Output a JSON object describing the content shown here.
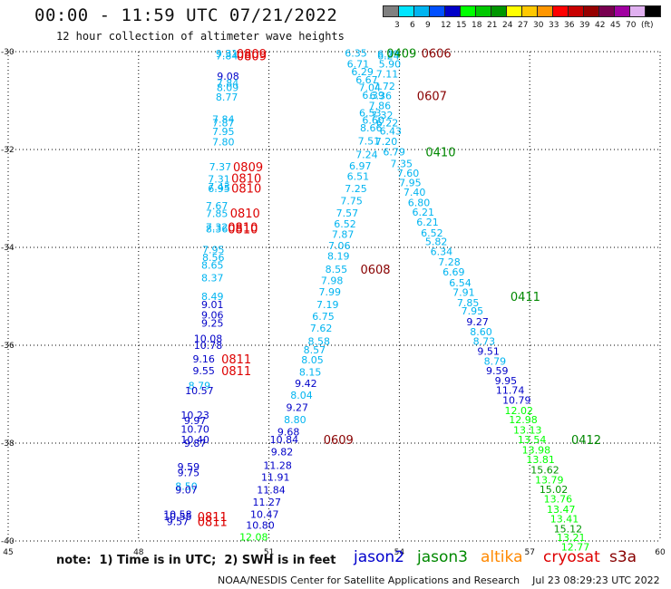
{
  "header": {
    "title": "00:00 - 11:59 UTC 07/21/2022",
    "subtitle": "12 hour collection of altimeter wave heights"
  },
  "colorbar": {
    "colors": [
      "#808080",
      "#00e5ff",
      "#00b4f0",
      "#0050ff",
      "#0000c8",
      "#00ff00",
      "#00c800",
      "#009600",
      "#ffff00",
      "#ffc800",
      "#ff9600",
      "#ff0000",
      "#c80000",
      "#960000",
      "#780050",
      "#a000a0",
      "#e0b0f0",
      "#000000"
    ],
    "labels": [
      "3",
      "6",
      "9",
      "12",
      "15",
      "18",
      "21",
      "24",
      "27",
      "30",
      "33",
      "36",
      "39",
      "42",
      "45",
      "70",
      "(ft)"
    ]
  },
  "legend": {
    "note": "note:  1) Time is in UTC;  2) SWH is in feet",
    "missions": [
      {
        "name": "jason2",
        "color": "#0000cc"
      },
      {
        "name": "jason3",
        "color": "#008800"
      },
      {
        "name": "altika",
        "color": "#ff8800"
      },
      {
        "name": "cryosat",
        "color": "#dd0000"
      },
      {
        "name": "s3a",
        "color": "#880000"
      }
    ]
  },
  "credit": "NOAA/NESDIS Center for Satellite Applications and Research    Jul 23 08:29:23 UTC 2022",
  "chart_data": {
    "type": "scatter",
    "xlim": [
      45,
      60
    ],
    "ylim": [
      -40,
      -30
    ],
    "x_ticks": [
      "45",
      "48",
      "51",
      "54",
      "57",
      "60"
    ],
    "y_ticks": [
      "-30",
      "-32",
      "-34",
      "-36",
      "-38",
      "-40"
    ],
    "grid": true,
    "points": [
      {
        "x": 50.03,
        "y": -30.04,
        "v": "9.31",
        "c": "#00b4f0"
      },
      {
        "x": 50.03,
        "y": -30.08,
        "v": "7.84",
        "c": "#00b4f0"
      },
      {
        "x": 50.06,
        "y": -30.5,
        "v": "9.08",
        "c": "#0000c8"
      },
      {
        "x": 50.05,
        "y": -30.64,
        "v": "7.84",
        "c": "#00b4f0"
      },
      {
        "x": 50.05,
        "y": -30.73,
        "v": "8.09",
        "c": "#00b4f0"
      },
      {
        "x": 50.03,
        "y": -30.93,
        "v": "8.77",
        "c": "#00b4f0"
      },
      {
        "x": 49.95,
        "y": -31.38,
        "v": "7.84",
        "c": "#00b4f0"
      },
      {
        "x": 49.95,
        "y": -31.45,
        "v": "7.87",
        "c": "#00b4f0"
      },
      {
        "x": 49.95,
        "y": -31.63,
        "v": "7.95",
        "c": "#00b4f0"
      },
      {
        "x": 49.95,
        "y": -31.84,
        "v": "7.80",
        "c": "#00b4f0"
      },
      {
        "x": 49.88,
        "y": -32.35,
        "v": "7.37",
        "c": "#00b4f0"
      },
      {
        "x": 49.85,
        "y": -32.6,
        "v": "7.31",
        "c": "#00b4f0"
      },
      {
        "x": 49.85,
        "y": -32.76,
        "v": "7.43",
        "c": "#00b4f0"
      },
      {
        "x": 49.85,
        "y": -32.8,
        "v": "6.95",
        "c": "#00b4f0"
      },
      {
        "x": 49.8,
        "y": -33.15,
        "v": "7.67",
        "c": "#00b4f0"
      },
      {
        "x": 49.8,
        "y": -33.31,
        "v": "7.85",
        "c": "#00b4f0"
      },
      {
        "x": 49.8,
        "y": -33.58,
        "v": "7.32",
        "c": "#00b4f0"
      },
      {
        "x": 49.8,
        "y": -33.62,
        "v": "8.36",
        "c": "#00b4f0"
      },
      {
        "x": 49.72,
        "y": -34.05,
        "v": "7.95",
        "c": "#00b4f0"
      },
      {
        "x": 49.72,
        "y": -34.2,
        "v": "8.56",
        "c": "#00b4f0"
      },
      {
        "x": 49.7,
        "y": -34.36,
        "v": "8.65",
        "c": "#00b4f0"
      },
      {
        "x": 49.7,
        "y": -34.62,
        "v": "8.37",
        "c": "#00b4f0"
      },
      {
        "x": 49.7,
        "y": -35.0,
        "v": "8.49",
        "c": "#00b4f0"
      },
      {
        "x": 49.7,
        "y": -35.17,
        "v": "9.01",
        "c": "#0000c8"
      },
      {
        "x": 49.7,
        "y": -35.38,
        "v": "9.06",
        "c": "#0000c8"
      },
      {
        "x": 49.7,
        "y": -35.55,
        "v": "9.25",
        "c": "#0000c8"
      },
      {
        "x": 49.6,
        "y": -35.86,
        "v": "10.08",
        "c": "#0000c8"
      },
      {
        "x": 49.6,
        "y": -36.0,
        "v": "10.78",
        "c": "#0000c8"
      },
      {
        "x": 49.5,
        "y": -36.28,
        "v": "9.16",
        "c": "#0000c8"
      },
      {
        "x": 49.5,
        "y": -36.52,
        "v": "9.55",
        "c": "#0000c8"
      },
      {
        "x": 49.4,
        "y": -36.82,
        "v": "8.79",
        "c": "#00b4f0"
      },
      {
        "x": 49.4,
        "y": -36.93,
        "v": "10.57",
        "c": "#0000c8"
      },
      {
        "x": 49.3,
        "y": -37.43,
        "v": "10.23",
        "c": "#0000c8"
      },
      {
        "x": 49.3,
        "y": -37.54,
        "v": "9.97",
        "c": "#0000c8"
      },
      {
        "x": 49.3,
        "y": -37.71,
        "v": "10.70",
        "c": "#0000c8"
      },
      {
        "x": 49.3,
        "y": -37.93,
        "v": "10.40",
        "c": "#0000c8"
      },
      {
        "x": 49.3,
        "y": -38.0,
        "v": "9.87",
        "c": "#0000c8"
      },
      {
        "x": 49.15,
        "y": -38.48,
        "v": "9.59",
        "c": "#0000c8"
      },
      {
        "x": 49.15,
        "y": -38.6,
        "v": "9.75",
        "c": "#0000c8"
      },
      {
        "x": 49.1,
        "y": -38.88,
        "v": "8.50",
        "c": "#00b4f0"
      },
      {
        "x": 49.1,
        "y": -38.95,
        "v": "9.07",
        "c": "#0000c8"
      },
      {
        "x": 48.9,
        "y": -39.45,
        "v": "10.58",
        "c": "#0000c8"
      },
      {
        "x": 48.9,
        "y": -39.5,
        "v": "10.55",
        "c": "#0000c8"
      },
      {
        "x": 48.9,
        "y": -39.6,
        "v": "9.57",
        "c": "#0000c8"
      },
      {
        "x": 53.0,
        "y": -30.03,
        "v": "6.35",
        "c": "#00b4f0"
      },
      {
        "x": 53.05,
        "y": -30.25,
        "v": "6.71",
        "c": "#00b4f0"
      },
      {
        "x": 53.15,
        "y": -30.41,
        "v": "6.29",
        "c": "#00b4f0"
      },
      {
        "x": 53.25,
        "y": -30.57,
        "v": "6.67",
        "c": "#00b4f0"
      },
      {
        "x": 53.32,
        "y": -30.73,
        "v": "7.04",
        "c": "#00b4f0"
      },
      {
        "x": 53.4,
        "y": -30.89,
        "v": "6.39",
        "c": "#00b4f0"
      },
      {
        "x": 53.33,
        "y": -31.25,
        "v": "6.53",
        "c": "#00b4f0"
      },
      {
        "x": 53.4,
        "y": -31.4,
        "v": "6.60",
        "c": "#00b4f0"
      },
      {
        "x": 53.35,
        "y": -31.56,
        "v": "8.66",
        "c": "#00b4f0"
      },
      {
        "x": 53.3,
        "y": -31.82,
        "v": "7.51",
        "c": "#00b4f0"
      },
      {
        "x": 53.25,
        "y": -32.1,
        "v": "7.24",
        "c": "#00b4f0"
      },
      {
        "x": 53.1,
        "y": -32.33,
        "v": "6.97",
        "c": "#00b4f0"
      },
      {
        "x": 53.05,
        "y": -32.55,
        "v": "6.51",
        "c": "#00b4f0"
      },
      {
        "x": 53.0,
        "y": -32.8,
        "v": "7.25",
        "c": "#00b4f0"
      },
      {
        "x": 52.9,
        "y": -33.05,
        "v": "7.75",
        "c": "#00b4f0"
      },
      {
        "x": 52.8,
        "y": -33.3,
        "v": "7.57",
        "c": "#00b4f0"
      },
      {
        "x": 52.75,
        "y": -33.52,
        "v": "6.52",
        "c": "#00b4f0"
      },
      {
        "x": 52.7,
        "y": -33.73,
        "v": "7.87",
        "c": "#00b4f0"
      },
      {
        "x": 52.62,
        "y": -33.96,
        "v": "7.06",
        "c": "#00b4f0"
      },
      {
        "x": 52.6,
        "y": -34.18,
        "v": "8.19",
        "c": "#00b4f0"
      },
      {
        "x": 52.55,
        "y": -34.44,
        "v": "8.55",
        "c": "#00b4f0"
      },
      {
        "x": 52.45,
        "y": -34.68,
        "v": "7.98",
        "c": "#00b4f0"
      },
      {
        "x": 52.4,
        "y": -34.91,
        "v": "7.99",
        "c": "#00b4f0"
      },
      {
        "x": 52.35,
        "y": -35.17,
        "v": "7.19",
        "c": "#00b4f0"
      },
      {
        "x": 52.25,
        "y": -35.41,
        "v": "6.75",
        "c": "#00b4f0"
      },
      {
        "x": 52.2,
        "y": -35.65,
        "v": "7.62",
        "c": "#00b4f0"
      },
      {
        "x": 52.15,
        "y": -35.92,
        "v": "8.58",
        "c": "#00b4f0"
      },
      {
        "x": 52.05,
        "y": -36.09,
        "v": "8.57",
        "c": "#00b4f0"
      },
      {
        "x": 52.0,
        "y": -36.3,
        "v": "8.05",
        "c": "#00b4f0"
      },
      {
        "x": 51.95,
        "y": -36.55,
        "v": "8.15",
        "c": "#00b4f0"
      },
      {
        "x": 51.85,
        "y": -36.78,
        "v": "9.42",
        "c": "#0000c8"
      },
      {
        "x": 51.75,
        "y": -37.02,
        "v": "8.04",
        "c": "#00b4f0"
      },
      {
        "x": 51.65,
        "y": -37.27,
        "v": "9.27",
        "c": "#0000c8"
      },
      {
        "x": 51.6,
        "y": -37.52,
        "v": "8.80",
        "c": "#00b4f0"
      },
      {
        "x": 51.45,
        "y": -37.77,
        "v": "9.68",
        "c": "#0000c8"
      },
      {
        "x": 51.35,
        "y": -37.93,
        "v": "10.84",
        "c": "#0000c8"
      },
      {
        "x": 51.3,
        "y": -38.18,
        "v": "9.82",
        "c": "#0000c8"
      },
      {
        "x": 51.2,
        "y": -38.45,
        "v": "11.28",
        "c": "#0000c8"
      },
      {
        "x": 51.15,
        "y": -38.69,
        "v": "11.91",
        "c": "#0000c8"
      },
      {
        "x": 51.05,
        "y": -38.95,
        "v": "11.84",
        "c": "#0000c8"
      },
      {
        "x": 50.95,
        "y": -39.2,
        "v": "11.27",
        "c": "#0000c8"
      },
      {
        "x": 50.9,
        "y": -39.45,
        "v": "10.47",
        "c": "#0000c8"
      },
      {
        "x": 50.8,
        "y": -39.68,
        "v": "10.80",
        "c": "#0000c8"
      },
      {
        "x": 50.65,
        "y": -39.92,
        "v": "12.08",
        "c": "#00ff00"
      },
      {
        "x": 53.75,
        "y": -30.05,
        "v": "6.29",
        "c": "#00b4f0"
      },
      {
        "x": 53.75,
        "y": -30.08,
        "v": "6.24",
        "c": "#00b4f0"
      },
      {
        "x": 53.78,
        "y": -30.25,
        "v": "5.90",
        "c": "#00b4f0"
      },
      {
        "x": 53.72,
        "y": -30.45,
        "v": "7.11",
        "c": "#00b4f0"
      },
      {
        "x": 53.65,
        "y": -30.7,
        "v": "7.72",
        "c": "#00b4f0"
      },
      {
        "x": 53.57,
        "y": -30.9,
        "v": "6.36",
        "c": "#00b4f0"
      },
      {
        "x": 53.55,
        "y": -31.1,
        "v": "7.86",
        "c": "#00b4f0"
      },
      {
        "x": 53.6,
        "y": -31.3,
        "v": "7.32",
        "c": "#00b4f0"
      },
      {
        "x": 53.72,
        "y": -31.45,
        "v": "6.22",
        "c": "#00b4f0"
      },
      {
        "x": 53.8,
        "y": -31.62,
        "v": "6.43",
        "c": "#00b4f0"
      },
      {
        "x": 53.7,
        "y": -31.83,
        "v": "7.20",
        "c": "#00b4f0"
      },
      {
        "x": 53.88,
        "y": -32.05,
        "v": "6.79",
        "c": "#00b4f0"
      },
      {
        "x": 54.05,
        "y": -32.29,
        "v": "7.35",
        "c": "#00b4f0"
      },
      {
        "x": 54.2,
        "y": -32.48,
        "v": "7.60",
        "c": "#00b4f0"
      },
      {
        "x": 54.25,
        "y": -32.68,
        "v": "7.95",
        "c": "#00b4f0"
      },
      {
        "x": 54.35,
        "y": -32.87,
        "v": "7.40",
        "c": "#00b4f0"
      },
      {
        "x": 54.45,
        "y": -33.08,
        "v": "6.80",
        "c": "#00b4f0"
      },
      {
        "x": 54.55,
        "y": -33.28,
        "v": "6.21",
        "c": "#00b4f0"
      },
      {
        "x": 54.65,
        "y": -33.48,
        "v": "6.21",
        "c": "#00b4f0"
      },
      {
        "x": 54.75,
        "y": -33.7,
        "v": "6.52",
        "c": "#00b4f0"
      },
      {
        "x": 54.85,
        "y": -33.88,
        "v": "5.82",
        "c": "#00b4f0"
      },
      {
        "x": 54.97,
        "y": -34.08,
        "v": "6.34",
        "c": "#00b4f0"
      },
      {
        "x": 55.15,
        "y": -34.3,
        "v": "7.28",
        "c": "#00b4f0"
      },
      {
        "x": 55.25,
        "y": -34.5,
        "v": "6.69",
        "c": "#00b4f0"
      },
      {
        "x": 55.4,
        "y": -34.72,
        "v": "6.54",
        "c": "#00b4f0"
      },
      {
        "x": 55.48,
        "y": -34.92,
        "v": "7.91",
        "c": "#00b4f0"
      },
      {
        "x": 55.58,
        "y": -35.13,
        "v": "7.85",
        "c": "#00b4f0"
      },
      {
        "x": 55.68,
        "y": -35.3,
        "v": "7.95",
        "c": "#00b4f0"
      },
      {
        "x": 55.8,
        "y": -35.52,
        "v": "9.27",
        "c": "#0000c8"
      },
      {
        "x": 55.88,
        "y": -35.72,
        "v": "8.60",
        "c": "#00b4f0"
      },
      {
        "x": 55.95,
        "y": -35.92,
        "v": "8.73",
        "c": "#00b4f0"
      },
      {
        "x": 56.05,
        "y": -36.12,
        "v": "9.51",
        "c": "#0000c8"
      },
      {
        "x": 56.2,
        "y": -36.32,
        "v": "8.79",
        "c": "#00b4f0"
      },
      {
        "x": 56.25,
        "y": -36.52,
        "v": "9.59",
        "c": "#0000c8"
      },
      {
        "x": 56.45,
        "y": -36.72,
        "v": "9.95",
        "c": "#0000c8"
      },
      {
        "x": 56.55,
        "y": -36.92,
        "v": "11.74",
        "c": "#0000c8"
      },
      {
        "x": 56.7,
        "y": -37.12,
        "v": "10.79",
        "c": "#0000c8"
      },
      {
        "x": 56.75,
        "y": -37.33,
        "v": "12.02",
        "c": "#00ff00"
      },
      {
        "x": 56.85,
        "y": -37.52,
        "v": "12.98",
        "c": "#00ff00"
      },
      {
        "x": 56.95,
        "y": -37.73,
        "v": "13.13",
        "c": "#00ff00"
      },
      {
        "x": 57.05,
        "y": -37.93,
        "v": "13.54",
        "c": "#00ff00"
      },
      {
        "x": 57.15,
        "y": -38.14,
        "v": "13.98",
        "c": "#00ff00"
      },
      {
        "x": 57.25,
        "y": -38.33,
        "v": "13.81",
        "c": "#00ff00"
      },
      {
        "x": 57.35,
        "y": -38.55,
        "v": "15.62",
        "c": "#009600"
      },
      {
        "x": 57.45,
        "y": -38.75,
        "v": "13.79",
        "c": "#00ff00"
      },
      {
        "x": 57.55,
        "y": -38.94,
        "v": "15.02",
        "c": "#009600"
      },
      {
        "x": 57.65,
        "y": -39.14,
        "v": "13.76",
        "c": "#00ff00"
      },
      {
        "x": 57.72,
        "y": -39.35,
        "v": "13.47",
        "c": "#00ff00"
      },
      {
        "x": 57.8,
        "y": -39.55,
        "v": "13.41",
        "c": "#00ff00"
      },
      {
        "x": 57.88,
        "y": -39.75,
        "v": "15.12",
        "c": "#009600"
      },
      {
        "x": 57.95,
        "y": -39.93,
        "v": "13.21",
        "c": "#00ff00"
      },
      {
        "x": 58.05,
        "y": -40.12,
        "v": "12.77",
        "c": "#00ff00"
      }
    ],
    "time_labels": [
      {
        "x": 50.6,
        "y": -30.04,
        "t": "0809",
        "c": "#dd0000"
      },
      {
        "x": 50.6,
        "y": -30.08,
        "t": "0809",
        "c": "#dd0000"
      },
      {
        "x": 50.52,
        "y": -32.35,
        "t": "0809",
        "c": "#dd0000"
      },
      {
        "x": 50.48,
        "y": -32.58,
        "t": "0810",
        "c": "#dd0000"
      },
      {
        "x": 50.48,
        "y": -32.79,
        "t": "0810",
        "c": "#dd0000"
      },
      {
        "x": 50.45,
        "y": -33.3,
        "t": "0810",
        "c": "#dd0000"
      },
      {
        "x": 50.4,
        "y": -33.58,
        "t": "0810",
        "c": "#dd0000"
      },
      {
        "x": 50.4,
        "y": -33.62,
        "t": "0810",
        "c": "#dd0000"
      },
      {
        "x": 50.25,
        "y": -36.28,
        "t": "0811",
        "c": "#dd0000"
      },
      {
        "x": 50.25,
        "y": -36.52,
        "t": "0811",
        "c": "#dd0000"
      },
      {
        "x": 49.7,
        "y": -39.5,
        "t": "0811",
        "c": "#dd0000"
      },
      {
        "x": 49.7,
        "y": -39.6,
        "t": "0811",
        "c": "#dd0000"
      },
      {
        "x": 54.05,
        "y": -30.03,
        "t": "0409",
        "c": "#008800"
      },
      {
        "x": 54.85,
        "y": -30.03,
        "t": "0606",
        "c": "#880000"
      },
      {
        "x": 54.75,
        "y": -30.9,
        "t": "0607",
        "c": "#880000"
      },
      {
        "x": 54.95,
        "y": -32.05,
        "t": "0410",
        "c": "#008800"
      },
      {
        "x": 53.45,
        "y": -34.44,
        "t": "0608",
        "c": "#880000"
      },
      {
        "x": 56.9,
        "y": -35.0,
        "t": "0411",
        "c": "#008800"
      },
      {
        "x": 52.6,
        "y": -37.93,
        "t": "0609",
        "c": "#880000"
      },
      {
        "x": 58.3,
        "y": -37.93,
        "t": "0412",
        "c": "#008800"
      }
    ]
  }
}
